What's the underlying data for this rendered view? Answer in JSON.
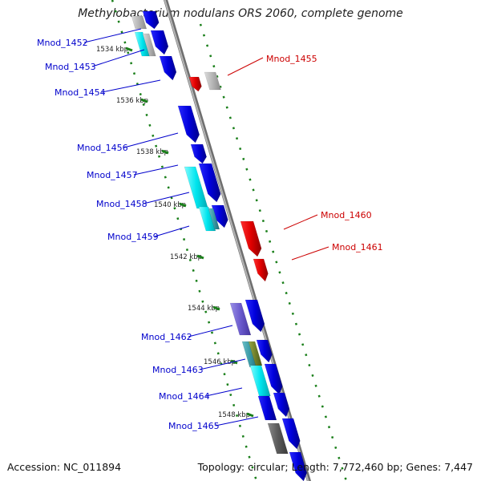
{
  "title": "Methylobacterium nodulans ORS 2060, complete genome",
  "footer": {
    "accession": "Accession: NC_011894",
    "topology": "Topology: circular; Length: 7,772,460 bp; Genes: 7,447"
  },
  "colors": {
    "plus_strand_gene": "#0000e0",
    "minus_strand_gene": "#e60000",
    "label_left": "#0000cc",
    "label_right": "#cc0000",
    "tick": "#1a7f1a",
    "backbone": "#8c8c8c",
    "highlight_cyan": "#00e5ee",
    "other_gray": "#aaaaaa"
  },
  "ticks": [
    {
      "label": "1534 kbp"
    },
    {
      "label": "1536 kbp"
    },
    {
      "label": "1538 kbp"
    },
    {
      "label": "1540 kbp"
    },
    {
      "label": "1542 kbp"
    },
    {
      "label": "1544 kbp"
    },
    {
      "label": "1546 kbp"
    },
    {
      "label": "1548 kbp"
    }
  ],
  "genes_left": [
    {
      "label": "Mnod_1452"
    },
    {
      "label": "Mnod_1453"
    },
    {
      "label": "Mnod_1454"
    },
    {
      "label": "Mnod_1456"
    },
    {
      "label": "Mnod_1457"
    },
    {
      "label": "Mnod_1458"
    },
    {
      "label": "Mnod_1459"
    },
    {
      "label": "Mnod_1462"
    },
    {
      "label": "Mnod_1463"
    },
    {
      "label": "Mnod_1464"
    },
    {
      "label": "Mnod_1465"
    }
  ],
  "genes_right": [
    {
      "label": "Mnod_1455"
    },
    {
      "label": "Mnod_1460"
    },
    {
      "label": "Mnod_1461"
    }
  ]
}
